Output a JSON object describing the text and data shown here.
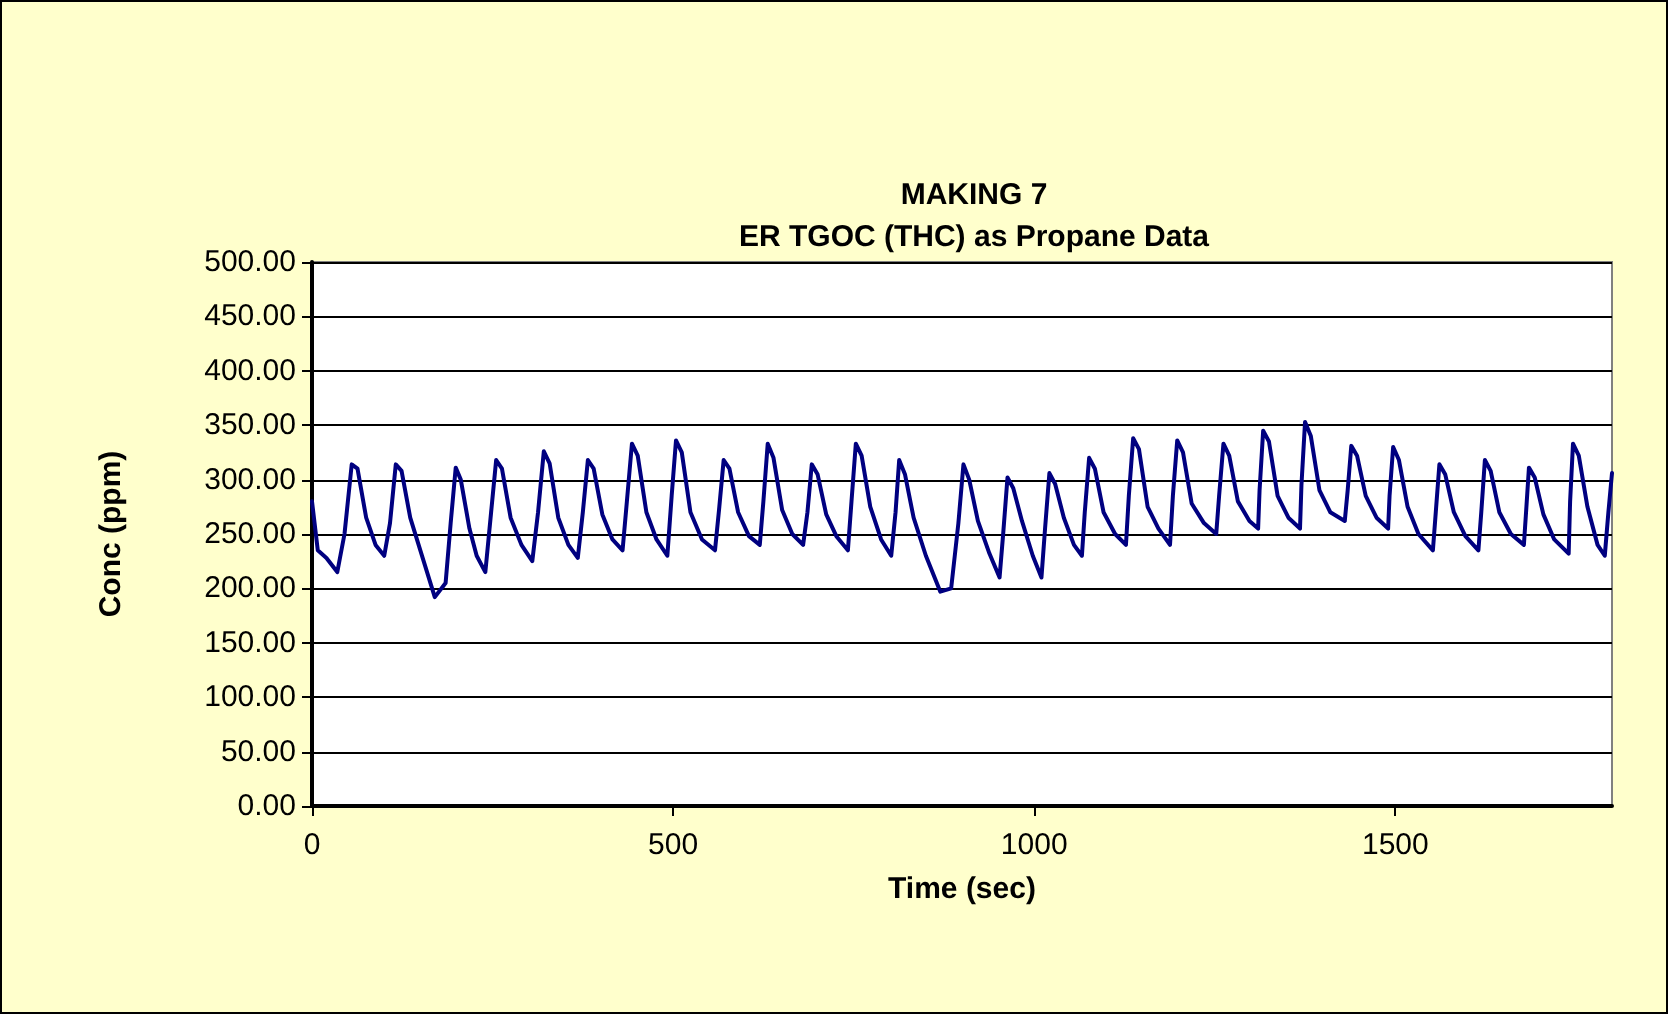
{
  "chart_data": {
    "type": "line",
    "title": "MAKING 7",
    "subtitle": "ER TGOC (THC) as Propane Data",
    "xlabel": "Time (sec)",
    "ylabel": "Conc (ppm)",
    "x": [
      0,
      8,
      20,
      35,
      45,
      55,
      63,
      75,
      88,
      100,
      108,
      116,
      124,
      136,
      150,
      170,
      185,
      192,
      199,
      206,
      218,
      228,
      240,
      248,
      255,
      263,
      275,
      290,
      305,
      313,
      321,
      329,
      341,
      355,
      368,
      375,
      382,
      390,
      402,
      416,
      430,
      436,
      443,
      451,
      463,
      477,
      492,
      498,
      504,
      512,
      524,
      540,
      558,
      564,
      570,
      578,
      590,
      605,
      620,
      625,
      631,
      639,
      651,
      665,
      680,
      686,
      692,
      700,
      712,
      726,
      742,
      747,
      753,
      761,
      773,
      788,
      802,
      808,
      813,
      821,
      833,
      850,
      870,
      885,
      895,
      902,
      910,
      922,
      938,
      952,
      957,
      963,
      971,
      983,
      998,
      1010,
      1015,
      1021,
      1029,
      1041,
      1055,
      1066,
      1070,
      1076,
      1084,
      1096,
      1112,
      1127,
      1131,
      1137,
      1145,
      1157,
      1172,
      1188,
      1192,
      1198,
      1206,
      1218,
      1235,
      1252,
      1256,
      1262,
      1270,
      1282,
      1298,
      1310,
      1312,
      1317,
      1325,
      1337,
      1352,
      1368,
      1370,
      1375,
      1383,
      1395,
      1410,
      1430,
      1434,
      1439,
      1447,
      1459,
      1474,
      1490,
      1492,
      1497,
      1505,
      1517,
      1532,
      1552,
      1556,
      1561,
      1569,
      1581,
      1597,
      1615,
      1619,
      1624,
      1632,
      1644,
      1660,
      1678,
      1681,
      1685,
      1693,
      1705,
      1720,
      1740,
      1742,
      1746,
      1754,
      1766,
      1780,
      1790,
      1795,
      1800
    ],
    "series": [
      {
        "color": "#000080",
        "values": [
          280,
          235,
          228,
          215,
          250,
          314,
          310,
          265,
          240,
          230,
          260,
          314,
          308,
          265,
          235,
          192,
          205,
          260,
          311,
          300,
          255,
          230,
          215,
          270,
          318,
          310,
          265,
          240,
          225,
          270,
          326,
          315,
          265,
          240,
          228,
          270,
          318,
          310,
          268,
          245,
          235,
          280,
          333,
          322,
          270,
          245,
          230,
          285,
          336,
          325,
          270,
          245,
          235,
          275,
          318,
          310,
          270,
          248,
          240,
          280,
          333,
          320,
          272,
          250,
          240,
          270,
          314,
          305,
          268,
          248,
          235,
          280,
          333,
          322,
          275,
          245,
          230,
          270,
          318,
          305,
          265,
          230,
          197,
          200,
          260,
          314,
          300,
          262,
          232,
          210,
          250,
          302,
          292,
          262,
          230,
          210,
          255,
          306,
          296,
          265,
          240,
          230,
          270,
          320,
          310,
          270,
          250,
          240,
          285,
          338,
          328,
          275,
          255,
          240,
          285,
          336,
          325,
          278,
          260,
          250,
          285,
          333,
          322,
          280,
          262,
          255,
          290,
          345,
          335,
          285,
          265,
          255,
          295,
          353,
          340,
          290,
          270,
          262,
          290,
          331,
          322,
          285,
          265,
          255,
          285,
          330,
          318,
          275,
          250,
          235,
          270,
          314,
          305,
          270,
          248,
          235,
          270,
          318,
          308,
          270,
          250,
          240,
          270,
          311,
          302,
          268,
          245,
          232,
          280,
          333,
          322,
          275,
          240,
          230,
          270,
          306
        ]
      }
    ],
    "xlim": [
      0,
      1800
    ],
    "xticks": [
      0,
      500,
      1000,
      1500
    ],
    "ylim": [
      0,
      500
    ],
    "yticks": [
      {
        "value": 0,
        "label": "0.00"
      },
      {
        "value": 50,
        "label": "50.00"
      },
      {
        "value": 100,
        "label": "100.00"
      },
      {
        "value": 150,
        "label": "150.00"
      },
      {
        "value": 200,
        "label": "200.00"
      },
      {
        "value": 250,
        "label": "250.00"
      },
      {
        "value": 300,
        "label": "300.00"
      },
      {
        "value": 350,
        "label": "350.00"
      },
      {
        "value": 400,
        "label": "400.00"
      },
      {
        "value": 450,
        "label": "450.00"
      },
      {
        "value": 500,
        "label": "500.00"
      }
    ],
    "grid": "y",
    "marker": "none",
    "line_style": "solid"
  }
}
